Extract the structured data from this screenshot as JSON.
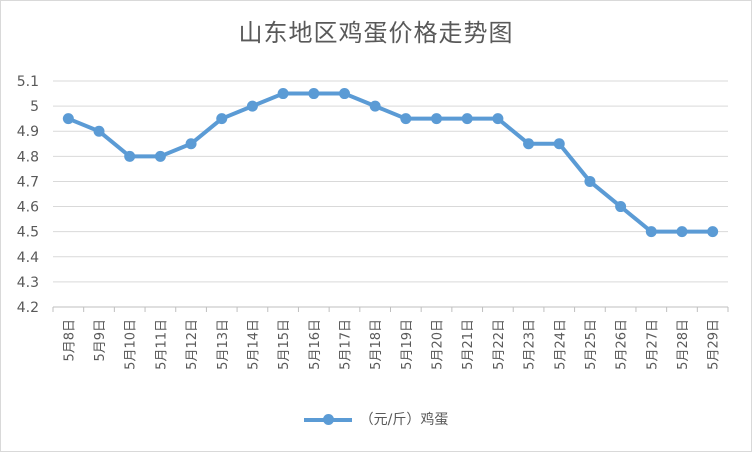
{
  "chart_data": {
    "type": "line",
    "title": "山东地区鸡蛋价格走势图",
    "categories": [
      "5月8日",
      "5月9日",
      "5月10日",
      "5月11日",
      "5月12日",
      "5月13日",
      "5月14日",
      "5月15日",
      "5月16日",
      "5月17日",
      "5月18日",
      "5月19日",
      "5月20日",
      "5月21日",
      "5月22日",
      "5月23日",
      "5月24日",
      "5月25日",
      "5月26日",
      "5月27日",
      "5月28日",
      "5月29日"
    ],
    "series": [
      {
        "name": "（元/斤）鸡蛋",
        "values": [
          4.95,
          4.9,
          4.8,
          4.8,
          4.85,
          4.95,
          5.0,
          5.05,
          5.05,
          5.05,
          5.0,
          4.95,
          4.95,
          4.95,
          4.95,
          4.85,
          4.85,
          4.7,
          4.6,
          4.5,
          4.5,
          4.5
        ],
        "color": "#5b9bd5"
      }
    ],
    "ylim": [
      4.2,
      5.1
    ],
    "yticks": [
      "4.2",
      "4.3",
      "4.4",
      "4.5",
      "4.6",
      "4.7",
      "4.8",
      "4.9",
      "5",
      "5.1"
    ],
    "grid": true,
    "legend": "bottom"
  }
}
